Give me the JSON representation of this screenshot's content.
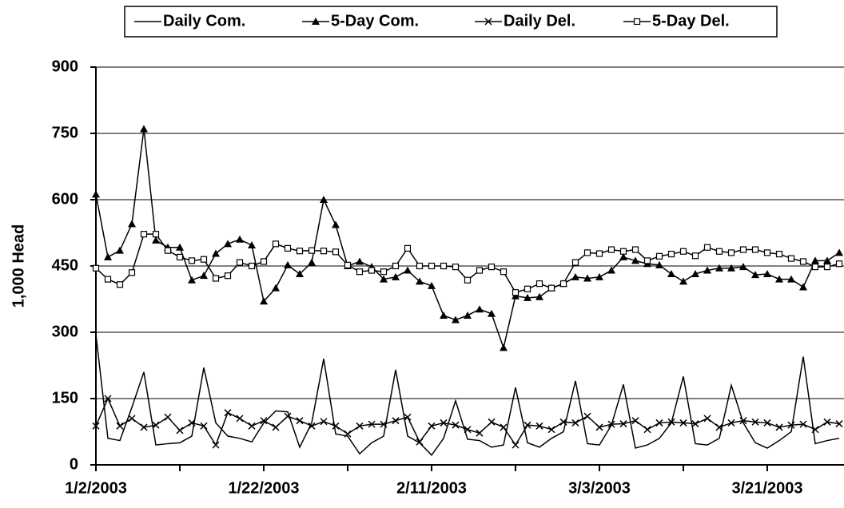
{
  "chart_data": {
    "type": "line",
    "y_label": "1,000 Head",
    "categories": [
      "1/2/2003",
      null,
      null,
      null,
      null,
      null,
      null,
      null,
      null,
      null,
      null,
      null,
      null,
      null,
      "1/22/2003",
      null,
      null,
      null,
      null,
      null,
      null,
      null,
      null,
      null,
      null,
      null,
      null,
      null,
      "2/11/2003",
      null,
      null,
      null,
      null,
      null,
      null,
      null,
      null,
      null,
      null,
      null,
      null,
      null,
      "3/3/2003",
      null,
      null,
      null,
      null,
      null,
      null,
      null,
      null,
      null,
      null,
      null,
      null,
      null,
      "3/21/2003",
      null,
      null,
      null,
      null,
      null,
      null
    ],
    "ylim": [
      0,
      900
    ],
    "yticks": [
      0,
      150,
      300,
      450,
      600,
      750,
      900
    ],
    "grid": true,
    "legend": "top",
    "series": [
      {
        "name": "Daily Com.",
        "color": "#000000",
        "marker": "none",
        "values": [
          295,
          60,
          55,
          130,
          210,
          45,
          48,
          50,
          65,
          220,
          95,
          65,
          60,
          52,
          95,
          122,
          120,
          40,
          95,
          240,
          70,
          65,
          25,
          50,
          65,
          215,
          65,
          50,
          22,
          60,
          145,
          58,
          55,
          40,
          45,
          175,
          50,
          40,
          60,
          75,
          190,
          48,
          45,
          90,
          182,
          38,
          45,
          60,
          95,
          200,
          48,
          45,
          60,
          180,
          95,
          50,
          38,
          55,
          75,
          245,
          48,
          55,
          60
        ]
      },
      {
        "name": "5-Day Com.",
        "color": "#000000",
        "marker": "triangle",
        "values": [
          612,
          470,
          485,
          545,
          760,
          508,
          492,
          492,
          418,
          428,
          478,
          500,
          510,
          497,
          370,
          400,
          452,
          432,
          458,
          600,
          543,
          450,
          460,
          448,
          420,
          425,
          440,
          415,
          405,
          338,
          328,
          338,
          352,
          342,
          265,
          382,
          378,
          380,
          400,
          410,
          425,
          422,
          425,
          440,
          470,
          462,
          455,
          452,
          432,
          415,
          432,
          440,
          445,
          445,
          448,
          430,
          432,
          420,
          420,
          402,
          462,
          462,
          480
        ]
      },
      {
        "name": "Daily Del.",
        "color": "#000000",
        "marker": "x",
        "values": [
          88,
          150,
          88,
          105,
          85,
          90,
          108,
          78,
          95,
          88,
          45,
          118,
          105,
          88,
          100,
          85,
          110,
          100,
          88,
          98,
          88,
          70,
          88,
          92,
          92,
          100,
          108,
          52,
          88,
          95,
          90,
          80,
          72,
          97,
          85,
          45,
          90,
          88,
          80,
          97,
          95,
          110,
          85,
          92,
          93,
          100,
          80,
          95,
          97,
          95,
          93,
          105,
          85,
          95,
          100,
          97,
          95,
          85,
          90,
          92,
          80,
          97,
          93
        ]
      },
      {
        "name": "5-Day Del.",
        "color": "#000000",
        "marker": "square",
        "values": [
          445,
          420,
          408,
          435,
          522,
          522,
          485,
          470,
          462,
          465,
          422,
          428,
          458,
          450,
          460,
          500,
          490,
          484,
          485,
          484,
          482,
          452,
          437,
          440,
          437,
          450,
          490,
          450,
          450,
          450,
          448,
          418,
          440,
          448,
          437,
          390,
          398,
          410,
          400,
          410,
          458,
          480,
          478,
          487,
          483,
          487,
          462,
          472,
          477,
          483,
          473,
          492,
          483,
          480,
          487,
          487,
          480,
          477,
          467,
          460,
          448,
          448,
          455
        ]
      }
    ]
  }
}
